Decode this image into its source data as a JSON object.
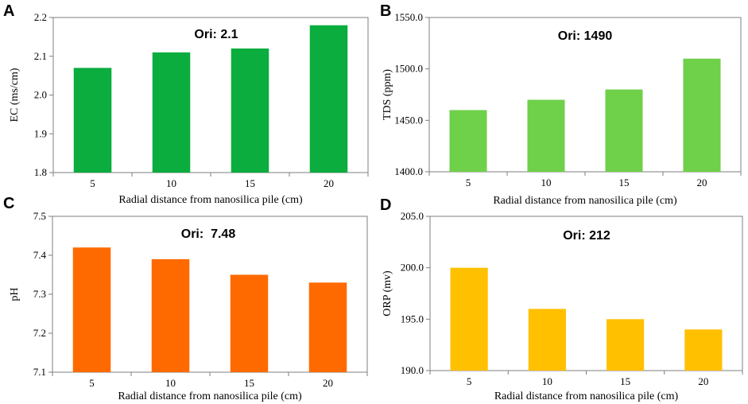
{
  "chart_data": [
    {
      "panel": "A",
      "type": "bar",
      "annotation": "Ori: 2.1",
      "categories": [
        "5",
        "10",
        "15",
        "20"
      ],
      "values": [
        2.07,
        2.11,
        2.12,
        2.18
      ],
      "yticks": [
        "1.8",
        "1.9",
        "2.0",
        "2.1",
        "2.2"
      ],
      "ylim": [
        1.8,
        2.2
      ],
      "xlabel": "Radial distance from nanosilica pile (cm)",
      "ylabel": "EC (ms/cm)",
      "color": "#0aad3e"
    },
    {
      "panel": "B",
      "type": "bar",
      "annotation": "Ori: 1490",
      "categories": [
        "5",
        "10",
        "15",
        "20"
      ],
      "values": [
        1460,
        1470,
        1480,
        1510
      ],
      "yticks": [
        "1400.0",
        "1450.0",
        "1500.0",
        "1550.0"
      ],
      "ylim": [
        1400,
        1550
      ],
      "xlabel": "Radial distance from nanosilica pile (cm)",
      "ylabel": "TDS (ppm)",
      "color": "#6fd04a"
    },
    {
      "panel": "C",
      "type": "bar",
      "annotation": "Ori:  7.48",
      "categories": [
        "5",
        "10",
        "15",
        "20"
      ],
      "values": [
        7.42,
        7.39,
        7.35,
        7.33
      ],
      "yticks": [
        "7.1",
        "7.2",
        "7.3",
        "7.4",
        "7.5"
      ],
      "ylim": [
        7.1,
        7.5
      ],
      "xlabel": "Radial distance from nanosilica pile (cm)",
      "ylabel": "pH",
      "color": "#ff6a00"
    },
    {
      "panel": "D",
      "type": "bar",
      "annotation": "Ori: 212",
      "categories": [
        "5",
        "10",
        "15",
        "20"
      ],
      "values": [
        200,
        196,
        195,
        194
      ],
      "yticks": [
        "190.0",
        "195.0",
        "200.0",
        "205.0"
      ],
      "ylim": [
        190,
        205
      ],
      "xlabel": "Radial distance from nanosilica pile (cm)",
      "ylabel": "ORP (mv)",
      "color": "#ffc000"
    }
  ]
}
